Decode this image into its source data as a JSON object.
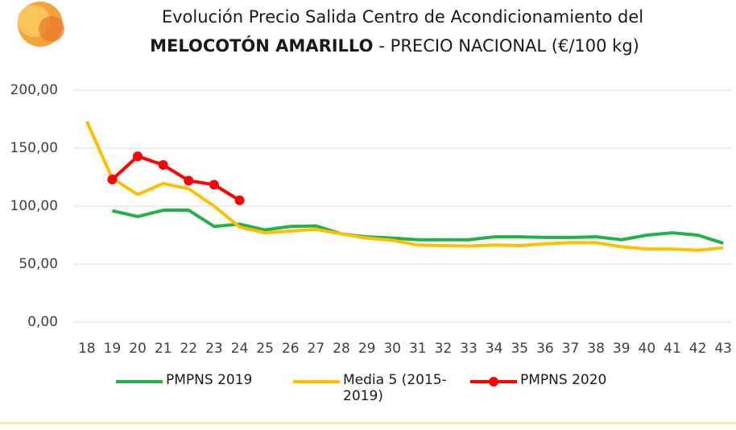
{
  "chart_data": {
    "type": "line",
    "title": [
      "Evolución Precio Salida Centro de Acondicionamiento del",
      "MELOCOTÓN AMARILLO",
      "- PRECIO NACIONAL (€/100 kg)"
    ],
    "categories": [
      "18",
      "19",
      "20",
      "21",
      "22",
      "23",
      "24",
      "25",
      "26",
      "27",
      "28",
      "29",
      "30",
      "31",
      "32",
      "33",
      "34",
      "35",
      "36",
      "37",
      "38",
      "39",
      "40",
      "41",
      "42",
      "43"
    ],
    "series": [
      {
        "name": "PMPNS 2019",
        "color": "#22b14c",
        "markers": false,
        "values": [
          null,
          96,
          91,
          96.5,
          96.5,
          82.5,
          84.5,
          79.5,
          82.5,
          83,
          76,
          73.5,
          72.5,
          71,
          71,
          71,
          73.5,
          73.5,
          73,
          73,
          73.5,
          71,
          75,
          77,
          75,
          68
        ]
      },
      {
        "name": "Media 5 (2015-2019)",
        "color": "#ffc000",
        "markers": false,
        "values": [
          173,
          124,
          110,
          119.5,
          115,
          100,
          82,
          77,
          78.5,
          80,
          76,
          72.5,
          70.5,
          66.5,
          66,
          65.5,
          66.5,
          66,
          67.5,
          68.5,
          68.5,
          65,
          63,
          63,
          62,
          64
        ]
      },
      {
        "name": "PMPNS 2020",
        "color": "#ff0000",
        "markers": true,
        "values": [
          null,
          123,
          143,
          135.5,
          122,
          118.5,
          105,
          null,
          null,
          null,
          null,
          null,
          null,
          null,
          null,
          null,
          null,
          null,
          null,
          null,
          null,
          null,
          null,
          null,
          null,
          null
        ]
      }
    ],
    "ylim": [
      0,
      200
    ],
    "yticks": [
      {
        "value": 0,
        "label": "0,00"
      },
      {
        "value": 50,
        "label": "50,00"
      },
      {
        "value": 100,
        "label": "100,00"
      },
      {
        "value": 150,
        "label": "150,00"
      },
      {
        "value": 200,
        "label": "200,00"
      }
    ],
    "grid": true,
    "legend": "bottom"
  }
}
